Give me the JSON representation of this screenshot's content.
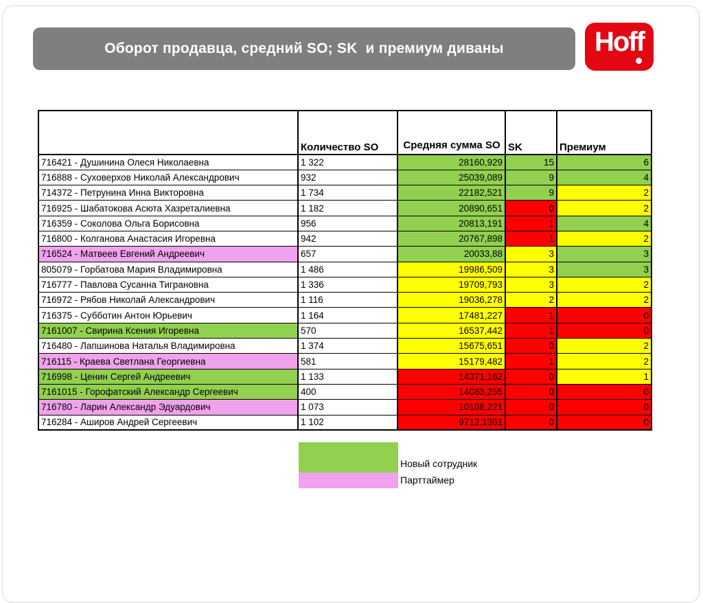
{
  "slide": {
    "title": "Оборот продавца, средний SO; SK  и премиум диваны"
  },
  "logo": {
    "text": "Hoff",
    "bg_color": "#E30613",
    "text_color": "#FFFFFF"
  },
  "colors": {
    "green": "#92D050",
    "yellow": "#FFFF00",
    "red": "#FF0000",
    "pink": "#F0A2EC",
    "white": "#FFFFFF",
    "title_bar_bg": "#7F7F7F",
    "table_border": "#000000"
  },
  "table": {
    "headers": {
      "employee": "",
      "qty_so": "Количество SO",
      "avg_so": "Средняя сумма SO",
      "sk": "SK",
      "premium": "Премиум"
    },
    "rows": [
      {
        "name": "716421 - Душинина Олеся Николаевна",
        "name_bg": "white",
        "qty": "1 322",
        "avg": "28160,929",
        "avg_bg": "green",
        "sk": "15",
        "sk_bg": "green",
        "prem": "6",
        "prem_bg": "green"
      },
      {
        "name": "716888 - Суховерхов Николай Александрович",
        "name_bg": "white",
        "qty": "932",
        "avg": "25039,089",
        "avg_bg": "green",
        "sk": "9",
        "sk_bg": "green",
        "prem": "4",
        "prem_bg": "green"
      },
      {
        "name": "714372 - Петрунина Инна Викторовна",
        "name_bg": "white",
        "qty": "1 734",
        "avg": "22182,521",
        "avg_bg": "green",
        "sk": "9",
        "sk_bg": "green",
        "prem": "2",
        "prem_bg": "yellow"
      },
      {
        "name": "716925 - Шабатокова Асюта Хазреталиевна",
        "name_bg": "white",
        "qty": "1 182",
        "avg": "20890,651",
        "avg_bg": "green",
        "sk": "0",
        "sk_bg": "red",
        "prem": "2",
        "prem_bg": "yellow"
      },
      {
        "name": "716359 - Соколова Ольга Борисовна",
        "name_bg": "white",
        "qty": "956",
        "avg": "20813,191",
        "avg_bg": "green",
        "sk": "1",
        "sk_bg": "red",
        "prem": "4",
        "prem_bg": "green"
      },
      {
        "name": "716800 - Колганова Анастасия Игоревна",
        "name_bg": "white",
        "qty": "942",
        "avg": "20767,898",
        "avg_bg": "green",
        "sk": "1",
        "sk_bg": "red",
        "prem": "2",
        "prem_bg": "yellow"
      },
      {
        "name": "716524 - Матвеев Евгений Андреевич",
        "name_bg": "pink",
        "qty": "657",
        "avg": "20033,88",
        "avg_bg": "green",
        "sk": "3",
        "sk_bg": "yellow",
        "prem": "3",
        "prem_bg": "green"
      },
      {
        "name": "805079 - Горбатова Мария Владимировна",
        "name_bg": "white",
        "qty": "1 486",
        "avg": "19986,509",
        "avg_bg": "yellow",
        "sk": "3",
        "sk_bg": "yellow",
        "prem": "3",
        "prem_bg": "green"
      },
      {
        "name": "716777 - Павлова Сусанна Тиграновна",
        "name_bg": "white",
        "qty": "1 336",
        "avg": "19709,793",
        "avg_bg": "yellow",
        "sk": "3",
        "sk_bg": "yellow",
        "prem": "2",
        "prem_bg": "yellow"
      },
      {
        "name": "716972 - Рябов Николай Александрович",
        "name_bg": "white",
        "qty": "1 116",
        "avg": "19036,278",
        "avg_bg": "yellow",
        "sk": "2",
        "sk_bg": "yellow",
        "prem": "2",
        "prem_bg": "yellow"
      },
      {
        "name": "716375 - Субботин Антон Юрьевич",
        "name_bg": "white",
        "qty": "1 164",
        "avg": "17481,227",
        "avg_bg": "yellow",
        "sk": "1",
        "sk_bg": "red",
        "prem": "0",
        "prem_bg": "red"
      },
      {
        "name": "7161007 - Свирина Ксения Игоревна",
        "name_bg": "green",
        "qty": "570",
        "avg": "16537,442",
        "avg_bg": "yellow",
        "sk": "1",
        "sk_bg": "red",
        "prem": "0",
        "prem_bg": "red"
      },
      {
        "name": "716480 - Лапшинова Наталья Владимировна",
        "name_bg": "white",
        "qty": "1 374",
        "avg": "15675,651",
        "avg_bg": "yellow",
        "sk": "0",
        "sk_bg": "red",
        "prem": "2",
        "prem_bg": "yellow"
      },
      {
        "name": "716115 - Краева Светлана Георгиевна",
        "name_bg": "pink",
        "qty": "581",
        "avg": "15179,482",
        "avg_bg": "yellow",
        "sk": "1",
        "sk_bg": "red",
        "prem": "2",
        "prem_bg": "yellow"
      },
      {
        "name": "716998 - Ценин Сергей Андреевич",
        "name_bg": "green",
        "qty": "1 133",
        "avg": "14371,162",
        "avg_bg": "red",
        "sk": "0",
        "sk_bg": "red",
        "prem": "1",
        "prem_bg": "yellow"
      },
      {
        "name": "7161015 - Горофатский Александр Сергеевич",
        "name_bg": "green",
        "qty": "400",
        "avg": "14083,255",
        "avg_bg": "red",
        "sk": "0",
        "sk_bg": "red",
        "prem": "0",
        "prem_bg": "red"
      },
      {
        "name": "716780 - Ларин Александр Эдуардович",
        "name_bg": "pink",
        "qty": "1 073",
        "avg": "10188,221",
        "avg_bg": "red",
        "sk": "0",
        "sk_bg": "red",
        "prem": "0",
        "prem_bg": "red"
      },
      {
        "name": "716284 - Аширов Андрей Сергеевич",
        "name_bg": "white",
        "qty": "1 102",
        "avg": "9712,1361",
        "avg_bg": "red",
        "sk": "0",
        "sk_bg": "red",
        "prem": "0",
        "prem_bg": "red"
      }
    ]
  },
  "legend": {
    "items": [
      {
        "label": "Новый сотрудник",
        "color": "green"
      },
      {
        "label": "Парттаймер",
        "color": "pink"
      }
    ]
  }
}
